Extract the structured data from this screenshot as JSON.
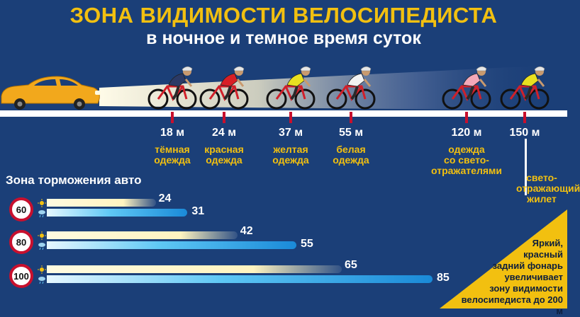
{
  "title": "ЗОНА ВИДИМОСТИ ВЕЛОСИПЕДИСТА",
  "subtitle": "в ночное и темное время суток",
  "colors": {
    "background": "#1b3f78",
    "accent": "#f2c010",
    "marker": "#c8102e"
  },
  "cyclists": [
    {
      "distance": "18 м",
      "desc": "тёмная\nодежда",
      "shirt": "#2b3a66"
    },
    {
      "distance": "24 м",
      "desc": "красная\nодежда",
      "shirt": "#d81f26"
    },
    {
      "distance": "37 м",
      "desc": "желтая\nодежда",
      "shirt": "#e8e020"
    },
    {
      "distance": "55 м",
      "desc": "белая\nодежда",
      "shirt": "#f2f2f2"
    },
    {
      "distance": "120 м",
      "desc": "одежда\nсо свето-\nотражателями",
      "shirt": "#f4a8b8"
    },
    {
      "distance": "150 м",
      "desc": "",
      "shirt": "#e8e020"
    }
  ],
  "vest_label": "свето-\nотражающий\nжилет",
  "braking": {
    "title": "Зона торможения авто",
    "rows": [
      {
        "speed": "60",
        "dry": "24",
        "wet": "31"
      },
      {
        "speed": "80",
        "dry": "42",
        "wet": "55"
      },
      {
        "speed": "100",
        "dry": "65",
        "wet": "85"
      }
    ]
  },
  "note": "Яркий,\nкрасный\nзадний фонарь\nувеличивает\nзону видимости\nвелосипедиста до 200 м"
}
